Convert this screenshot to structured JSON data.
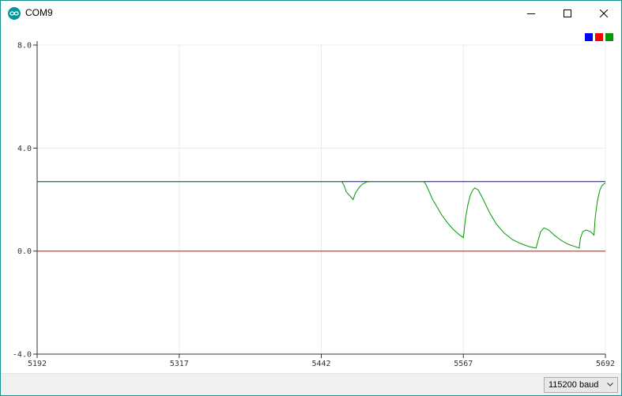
{
  "window": {
    "title": "COM9",
    "icon": "arduino-infinity-icon",
    "border_color": "#1e8f8f"
  },
  "controls": {
    "minimize_icon": "minimize-icon",
    "maximize_icon": "maximize-icon",
    "close_icon": "close-icon"
  },
  "status_bar": {
    "baud_rate": "115200 baud",
    "dropdown_icon": "chevron-down-icon"
  },
  "chart_data": {
    "type": "line",
    "title": "",
    "xlabel": "",
    "ylabel": "",
    "xlim": [
      5192,
      5692
    ],
    "ylim": [
      -4.0,
      8.0
    ],
    "x_ticks": [
      "5192",
      "5317",
      "5442",
      "5567",
      "5692"
    ],
    "y_ticks": [
      "8.0",
      "4.0",
      "0.0",
      "-4.0"
    ],
    "grid": true,
    "legend": {
      "placement": "top-right",
      "colors": [
        "#0000ff",
        "#ff0000",
        "#009900"
      ]
    },
    "series": [
      {
        "color": "#0000ff",
        "points": [
          [
            5192,
            2.7
          ],
          [
            5692,
            2.7
          ]
        ]
      },
      {
        "color": "#ff0000",
        "points": [
          [
            5192,
            0.0
          ],
          [
            5692,
            0.0
          ]
        ]
      },
      {
        "color": "#009900",
        "points": [
          [
            5192,
            2.7
          ],
          [
            5460,
            2.7
          ],
          [
            5462,
            2.55
          ],
          [
            5464,
            2.3
          ],
          [
            5467,
            2.15
          ],
          [
            5470,
            2.0
          ],
          [
            5472,
            2.25
          ],
          [
            5475,
            2.45
          ],
          [
            5478,
            2.6
          ],
          [
            5482,
            2.68
          ],
          [
            5485,
            2.7
          ],
          [
            5532,
            2.7
          ],
          [
            5534,
            2.6
          ],
          [
            5537,
            2.3
          ],
          [
            5540,
            2.0
          ],
          [
            5544,
            1.7
          ],
          [
            5548,
            1.4
          ],
          [
            5553,
            1.1
          ],
          [
            5558,
            0.85
          ],
          [
            5563,
            0.65
          ],
          [
            5567,
            0.52
          ],
          [
            5569,
            1.3
          ],
          [
            5571,
            1.8
          ],
          [
            5573,
            2.15
          ],
          [
            5575,
            2.35
          ],
          [
            5577,
            2.45
          ],
          [
            5580,
            2.38
          ],
          [
            5584,
            2.05
          ],
          [
            5590,
            1.5
          ],
          [
            5596,
            1.05
          ],
          [
            5603,
            0.7
          ],
          [
            5610,
            0.45
          ],
          [
            5617,
            0.3
          ],
          [
            5625,
            0.17
          ],
          [
            5631,
            0.12
          ],
          [
            5633,
            0.45
          ],
          [
            5635,
            0.75
          ],
          [
            5638,
            0.9
          ],
          [
            5642,
            0.82
          ],
          [
            5647,
            0.62
          ],
          [
            5653,
            0.42
          ],
          [
            5659,
            0.27
          ],
          [
            5665,
            0.18
          ],
          [
            5669,
            0.12
          ],
          [
            5670,
            0.5
          ],
          [
            5672,
            0.75
          ],
          [
            5675,
            0.82
          ],
          [
            5679,
            0.75
          ],
          [
            5682,
            0.62
          ],
          [
            5683,
            1.3
          ],
          [
            5685,
            1.95
          ],
          [
            5687,
            2.35
          ],
          [
            5689,
            2.55
          ],
          [
            5692,
            2.65
          ]
        ]
      }
    ]
  }
}
